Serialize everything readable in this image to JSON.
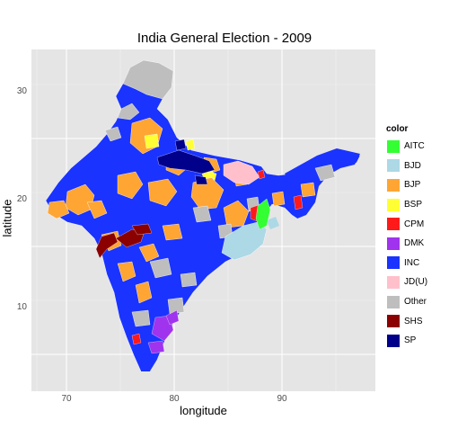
{
  "title": "India General Election - 2009",
  "axes": {
    "xlabel": "longitude",
    "ylabel": "latitude",
    "xticks": [
      "70",
      "80",
      "90"
    ],
    "yticks": [
      "10",
      "20",
      "30"
    ]
  },
  "legend": {
    "title": "color",
    "items": [
      {
        "label": "AITC",
        "color": "#33ff33"
      },
      {
        "label": "BJD",
        "color": "#add8e6"
      },
      {
        "label": "BJP",
        "color": "#ffa533"
      },
      {
        "label": "BSP",
        "color": "#ffff33"
      },
      {
        "label": "CPM",
        "color": "#ff1a1a"
      },
      {
        "label": "DMK",
        "color": "#a033ee"
      },
      {
        "label": "INC",
        "color": "#1a33ff"
      },
      {
        "label": "JD(U)",
        "color": "#ffc0cb"
      },
      {
        "label": "Other",
        "color": "#bebebe"
      },
      {
        "label": "SHS",
        "color": "#8b0000"
      },
      {
        "label": "SP",
        "color": "#00008b"
      }
    ]
  }
}
